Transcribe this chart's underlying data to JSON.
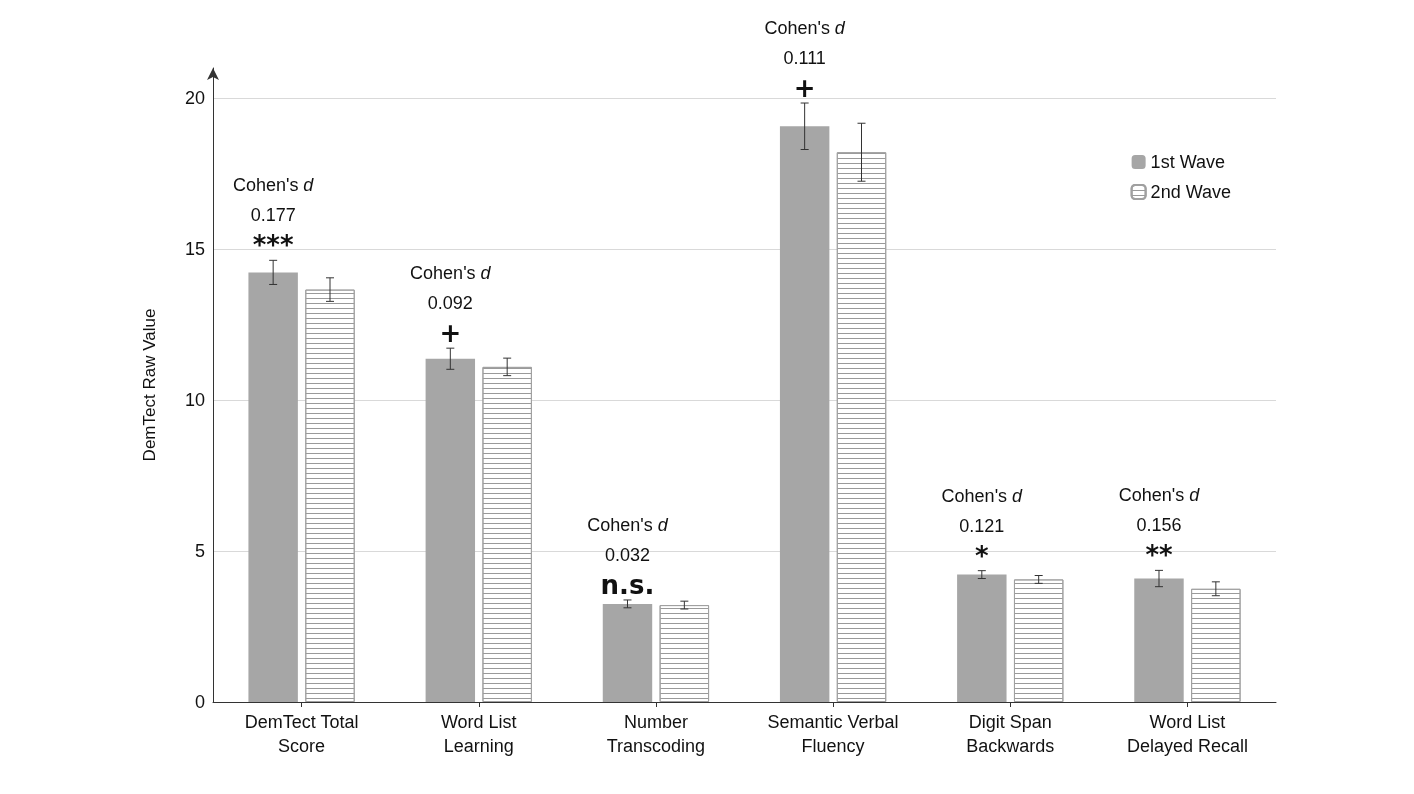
{
  "chart_data": {
    "type": "bar",
    "ylabel": "DemTect Raw Value",
    "categories": [
      "DemTect Total\nScore",
      "Word List\nLearning",
      "Number\nTranscoding",
      "Semantic Verbal\nFluency",
      "Digit Span\nBackwards",
      "Word List\nDelayed Recall"
    ],
    "series": [
      {
        "name": "1st Wave",
        "color": "#a6a6a6",
        "values": [
          14.23,
          11.37,
          3.25,
          19.07,
          4.22,
          4.09
        ],
        "errors": [
          0.4,
          0.35,
          0.13,
          0.77,
          0.13,
          0.27
        ]
      },
      {
        "name": "2nd Wave",
        "color": "#ffffff",
        "values": [
          13.66,
          11.1,
          3.21,
          18.21,
          4.06,
          3.75
        ],
        "errors": [
          0.39,
          0.29,
          0.13,
          0.96,
          0.13,
          0.23
        ]
      }
    ],
    "annotations": [
      "Cohen's d\n0.177\n***",
      "Cohen's d\n0.092\n+",
      "Cohen's d\n0.032\nn.s.",
      "Cohen's d\n0.111\n+",
      "Cohen's d\n0.121\n*",
      "Cohen's d\n0.156\n**"
    ],
    "ylim": [
      0,
      21
    ],
    "yticks": [
      0,
      5,
      10,
      15,
      20
    ],
    "grid": "y",
    "legend": "top right"
  }
}
